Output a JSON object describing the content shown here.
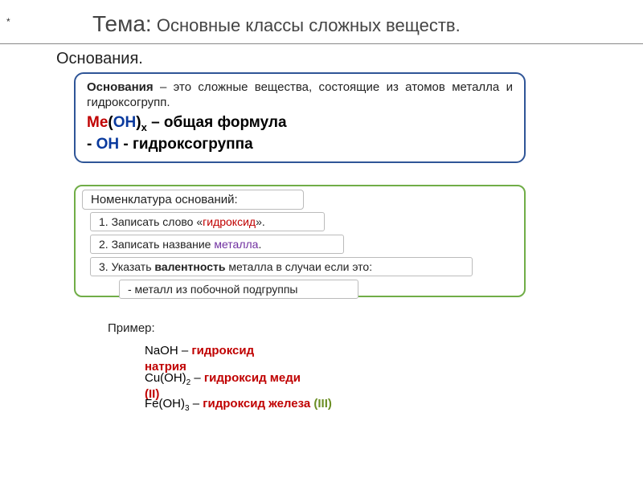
{
  "colors": {
    "def_border": "#2f5597",
    "naming_border": "#70ad47",
    "text": "#222222",
    "red": "#c00000",
    "blue": "#0a3a9e",
    "purple": "#7030a0",
    "green": "#6b8e23"
  },
  "asterisk": "*",
  "header": {
    "topic_label": "Тема:",
    "topic_text": " Основные классы сложных веществ."
  },
  "subheader": "Основания.",
  "definition": {
    "term": "Основания",
    "text_rest": " – это сложные вещества, состоящие из атомов металла и гидроксогрупп.",
    "formula_me": "Ме",
    "formula_paren_open": "(",
    "formula_oh": "ОН",
    "formula_paren_close": ")",
    "formula_x": "x",
    "formula_dash": " – ",
    "formula_label": "общая формула",
    "oh_dash": "- ",
    "oh_text": "ОН",
    "oh_dash2": " - ",
    "oh_label": "гидроксогруппа"
  },
  "naming": {
    "title": "Номенклатура оснований:",
    "step1_pre": "1. Записать слово «",
    "step1_hl": "гидроксид",
    "step1_post": "».",
    "step2_pre": "2. Записать название ",
    "step2_hl": "металла",
    "step2_post": ".",
    "step3_pre": "3. Указать ",
    "step3_bold": "валентность",
    "step3_post": " металла в случаи если это:",
    "step4": "- металл из побочной подгруппы"
  },
  "example": {
    "label": "Пример:",
    "ex1_formula": "NaOH",
    "ex1_dash": " – ",
    "ex1_name1": "гидроксид",
    "ex1_name2": "натрия",
    "ex2_formula_a": "Cu(OH)",
    "ex2_formula_sub": "2",
    "ex2_dash": " – ",
    "ex2_name": "гидроксид меди",
    "ex2_valence": "(II)",
    "ex3_formula_a": "Fe(OH)",
    "ex3_formula_sub": "3",
    "ex3_dash": " – ",
    "ex3_name": "гидроксид железа ",
    "ex3_valence": "(III)"
  }
}
